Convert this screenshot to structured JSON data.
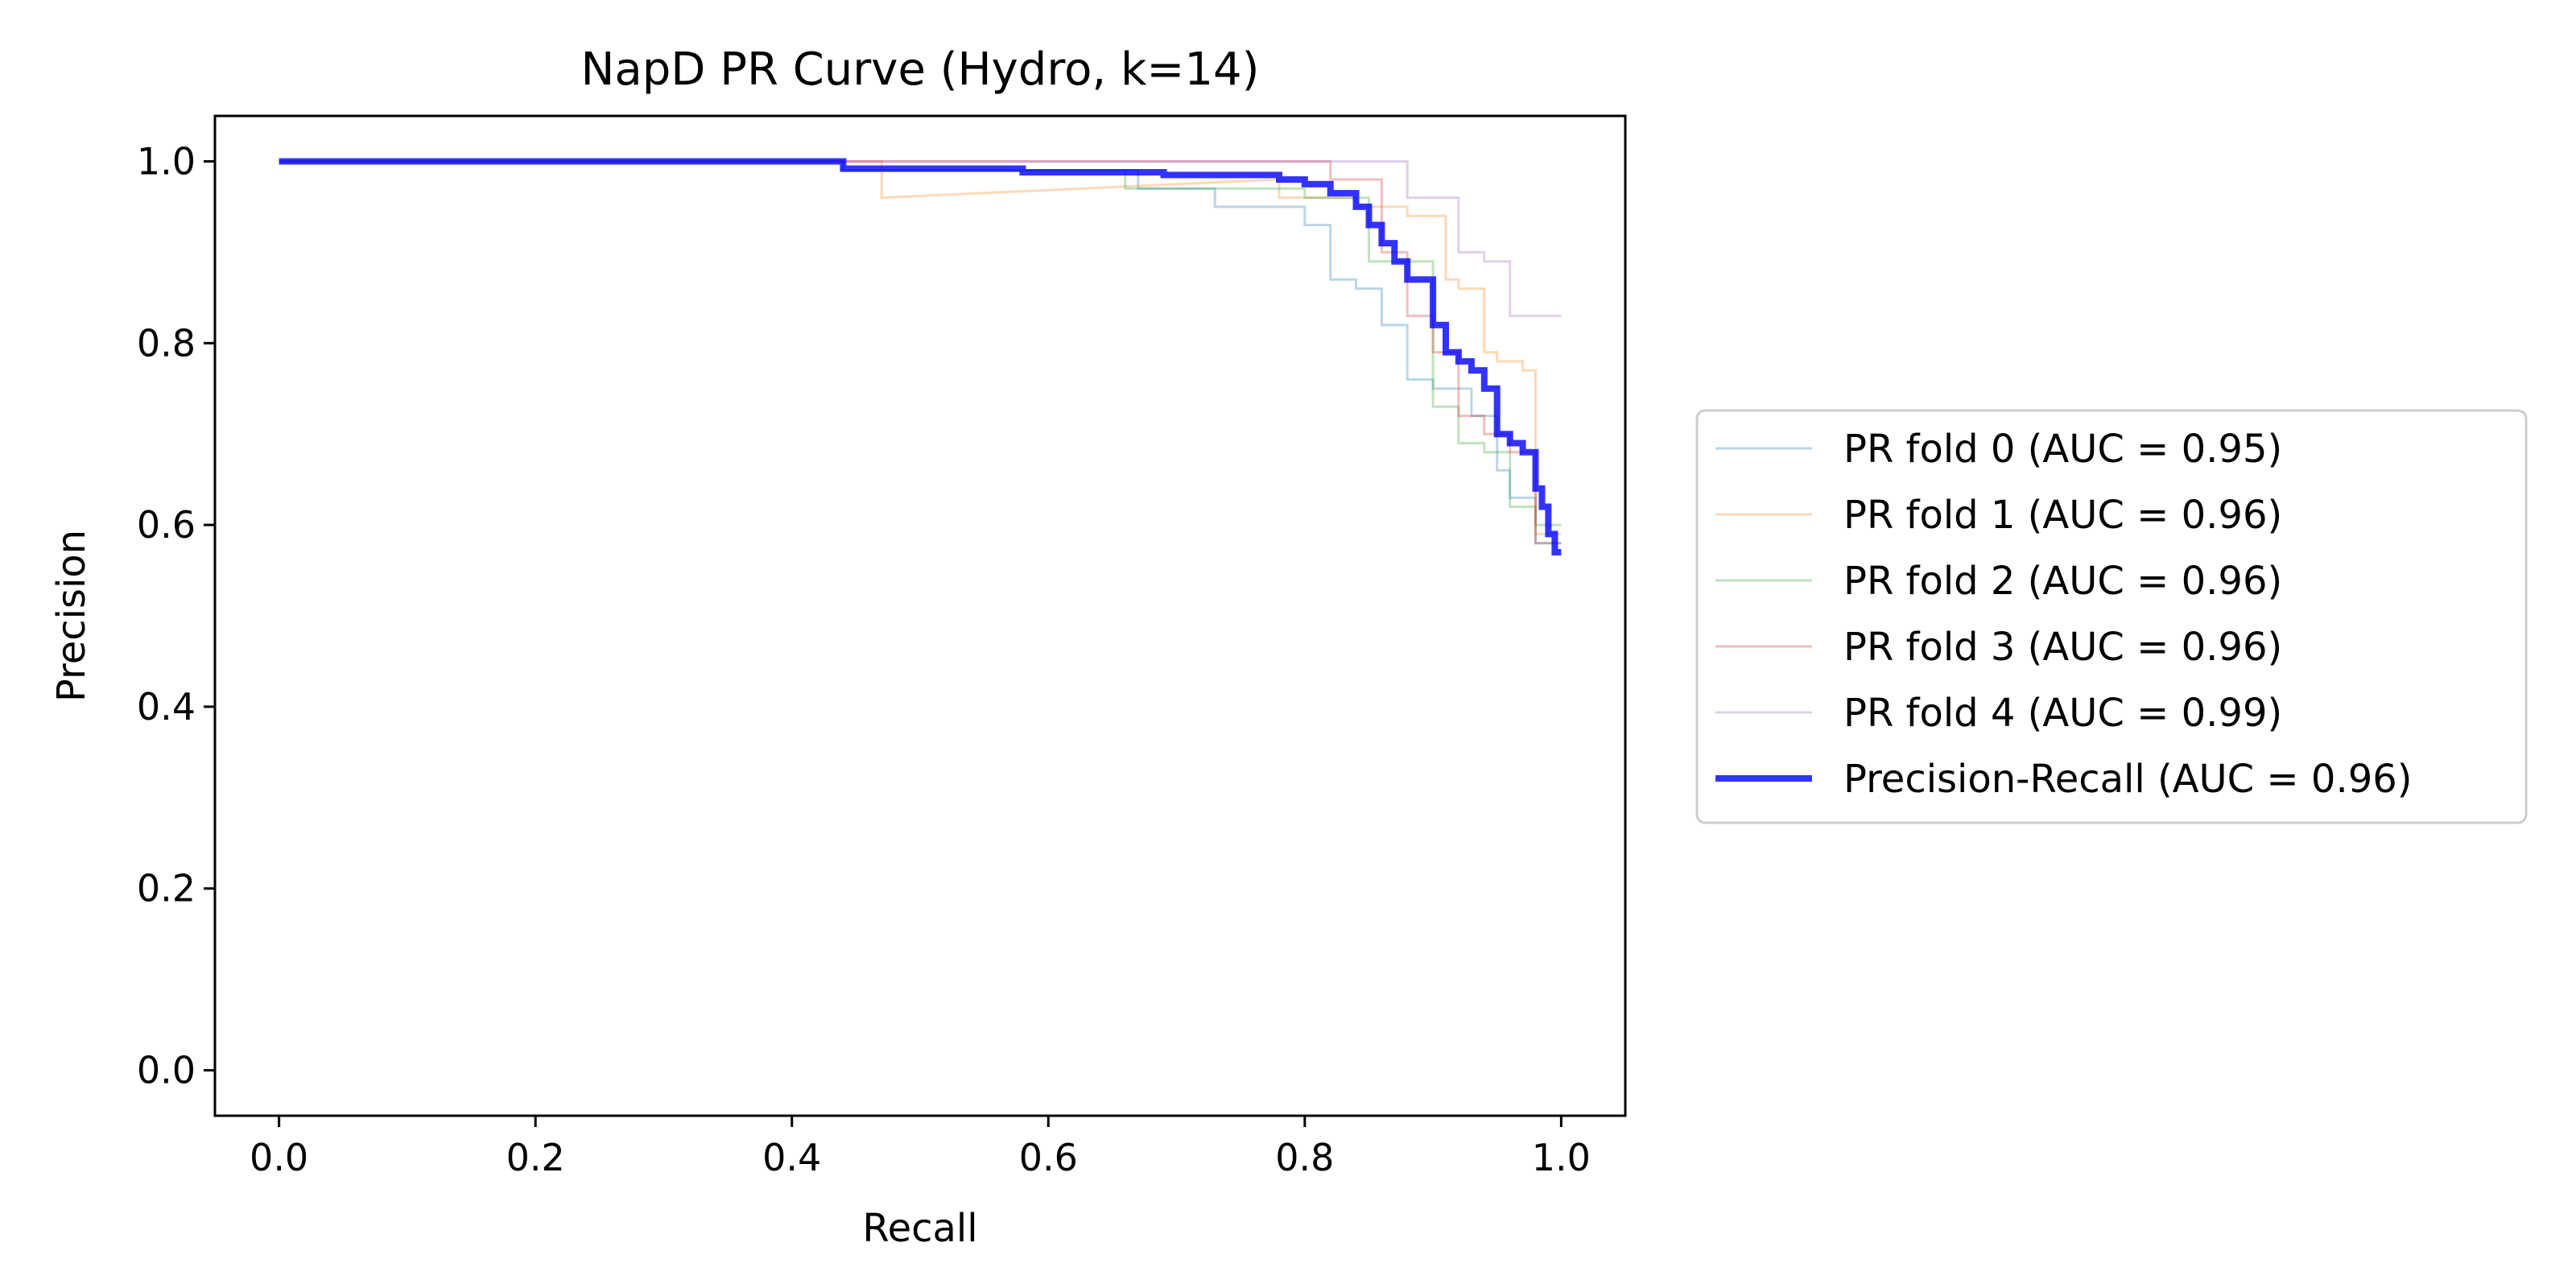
{
  "chart_data": {
    "type": "line",
    "title": "NapD PR Curve (Hydro, k=14)",
    "xlabel": "Recall",
    "ylabel": "Precision",
    "xlim": [
      -0.05,
      1.05
    ],
    "ylim": [
      -0.05,
      1.05
    ],
    "xticks": [
      0.0,
      0.2,
      0.4,
      0.6,
      0.8,
      1.0
    ],
    "yticks": [
      0.0,
      0.2,
      0.4,
      0.6,
      0.8,
      1.0
    ],
    "tick_format": "0.0",
    "grid": false,
    "legend_position": "outside-right",
    "series": [
      {
        "name": "PR fold 0 (AUC = 0.95)",
        "color": "#1f77b4",
        "alpha": 0.3,
        "width": 3,
        "x": [
          0.0,
          0.44,
          0.44,
          0.67,
          0.67,
          0.73,
          0.73,
          0.8,
          0.8,
          0.82,
          0.82,
          0.84,
          0.84,
          0.86,
          0.86,
          0.88,
          0.88,
          0.9,
          0.9,
          0.93,
          0.93,
          0.95,
          0.95,
          0.96,
          0.96,
          0.98,
          0.98,
          1.0
        ],
        "y": [
          1.0,
          1.0,
          0.99,
          0.99,
          0.97,
          0.97,
          0.95,
          0.95,
          0.93,
          0.93,
          0.87,
          0.87,
          0.86,
          0.86,
          0.82,
          0.82,
          0.76,
          0.76,
          0.75,
          0.75,
          0.72,
          0.72,
          0.66,
          0.66,
          0.63,
          0.63,
          0.58,
          0.58
        ]
      },
      {
        "name": "PR fold 1 (AUC = 0.96)",
        "color": "#ff7f0e",
        "alpha": 0.3,
        "width": 3,
        "x": [
          0.0,
          0.44,
          0.47,
          0.47,
          0.78,
          0.78,
          0.84,
          0.84,
          0.88,
          0.88,
          0.91,
          0.91,
          0.92,
          0.92,
          0.94,
          0.94,
          0.95,
          0.95,
          0.97,
          0.97,
          0.98,
          0.98,
          1.0
        ],
        "y": [
          1.0,
          1.0,
          1.0,
          0.96,
          0.98,
          0.96,
          0.96,
          0.95,
          0.95,
          0.94,
          0.94,
          0.87,
          0.87,
          0.86,
          0.86,
          0.79,
          0.79,
          0.78,
          0.78,
          0.77,
          0.77,
          0.59,
          0.59
        ]
      },
      {
        "name": "PR fold 2 (AUC = 0.96)",
        "color": "#2ca02c",
        "alpha": 0.3,
        "width": 3,
        "x": [
          0.0,
          0.44,
          0.44,
          0.66,
          0.66,
          0.8,
          0.8,
          0.85,
          0.85,
          0.9,
          0.9,
          0.92,
          0.92,
          0.94,
          0.94,
          0.96,
          0.96,
          0.98,
          0.98,
          1.0
        ],
        "y": [
          1.0,
          1.0,
          0.99,
          0.99,
          0.97,
          0.97,
          0.96,
          0.96,
          0.89,
          0.89,
          0.73,
          0.73,
          0.69,
          0.69,
          0.68,
          0.68,
          0.62,
          0.62,
          0.6,
          0.6
        ]
      },
      {
        "name": "PR fold 3 (AUC = 0.96)",
        "color": "#d62728",
        "alpha": 0.3,
        "width": 3,
        "x": [
          0.0,
          0.44,
          0.44,
          0.82,
          0.82,
          0.86,
          0.86,
          0.88,
          0.88,
          0.9,
          0.9,
          0.92,
          0.92,
          0.94,
          0.94,
          0.96,
          0.96,
          0.98,
          0.98,
          1.0
        ],
        "y": [
          1.0,
          1.0,
          1.0,
          1.0,
          0.98,
          0.98,
          0.9,
          0.9,
          0.83,
          0.83,
          0.79,
          0.79,
          0.72,
          0.72,
          0.7,
          0.7,
          0.68,
          0.68,
          0.58,
          0.58
        ]
      },
      {
        "name": "PR fold 4 (AUC = 0.99)",
        "color": "#9467bd",
        "alpha": 0.3,
        "width": 3,
        "x": [
          0.0,
          0.88,
          0.88,
          0.92,
          0.92,
          0.94,
          0.94,
          0.96,
          0.96,
          1.0
        ],
        "y": [
          1.0,
          1.0,
          0.96,
          0.96,
          0.9,
          0.9,
          0.89,
          0.89,
          0.83,
          0.83
        ]
      },
      {
        "name": "Precision-Recall (AUC = 0.96)",
        "color": "#0000ff",
        "alpha": 0.8,
        "width": 8,
        "x": [
          0.0,
          0.44,
          0.44,
          0.58,
          0.58,
          0.69,
          0.69,
          0.78,
          0.78,
          0.8,
          0.8,
          0.82,
          0.82,
          0.84,
          0.84,
          0.85,
          0.85,
          0.86,
          0.86,
          0.87,
          0.87,
          0.88,
          0.88,
          0.9,
          0.9,
          0.91,
          0.91,
          0.92,
          0.92,
          0.93,
          0.93,
          0.94,
          0.94,
          0.95,
          0.95,
          0.96,
          0.96,
          0.97,
          0.97,
          0.98,
          0.98,
          0.985,
          0.985,
          0.99,
          0.99,
          0.995,
          0.995,
          1.0
        ],
        "y": [
          1.0,
          1.0,
          0.992,
          0.992,
          0.988,
          0.988,
          0.985,
          0.985,
          0.98,
          0.98,
          0.975,
          0.975,
          0.965,
          0.965,
          0.95,
          0.95,
          0.93,
          0.93,
          0.91,
          0.91,
          0.89,
          0.89,
          0.87,
          0.87,
          0.82,
          0.82,
          0.79,
          0.79,
          0.78,
          0.78,
          0.77,
          0.77,
          0.75,
          0.75,
          0.7,
          0.7,
          0.69,
          0.69,
          0.68,
          0.68,
          0.64,
          0.64,
          0.62,
          0.62,
          0.59,
          0.59,
          0.57,
          0.57
        ]
      }
    ]
  }
}
